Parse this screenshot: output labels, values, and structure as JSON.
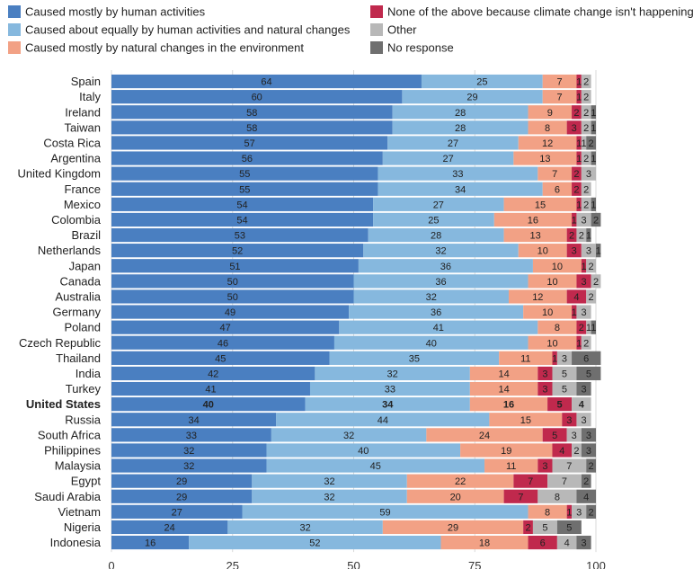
{
  "chart_data": {
    "type": "bar",
    "orientation": "horizontal",
    "stacked": true,
    "grid": true,
    "legend_position": "top",
    "xlim": [
      0,
      100
    ],
    "xticks": [
      0,
      25,
      50,
      75,
      100
    ],
    "highlight_category": "United States",
    "categories": [
      "Spain",
      "Italy",
      "Ireland",
      "Taiwan",
      "Costa Rica",
      "Argentina",
      "United Kingdom",
      "France",
      "Mexico",
      "Colombia",
      "Brazil",
      "Netherlands",
      "Japan",
      "Canada",
      "Australia",
      "Germany",
      "Poland",
      "Czech Republic",
      "Thailand",
      "India",
      "Turkey",
      "United States",
      "Russia",
      "South Africa",
      "Philippines",
      "Malaysia",
      "Egypt",
      "Saudi Arabia",
      "Vietnam",
      "Nigeria",
      "Indonesia"
    ],
    "series": [
      {
        "name": "Caused mostly by human activities",
        "color": "#4a7fc1",
        "values": [
          64,
          60,
          58,
          58,
          57,
          56,
          55,
          55,
          54,
          54,
          53,
          52,
          51,
          50,
          50,
          49,
          47,
          46,
          45,
          42,
          41,
          40,
          34,
          33,
          32,
          32,
          29,
          29,
          27,
          24,
          16
        ]
      },
      {
        "name": "Caused about equally by human activities and natural changes",
        "color": "#86b8de",
        "values": [
          25,
          29,
          28,
          28,
          27,
          27,
          33,
          34,
          27,
          25,
          28,
          32,
          36,
          36,
          32,
          36,
          41,
          40,
          35,
          32,
          33,
          34,
          44,
          32,
          40,
          45,
          32,
          32,
          59,
          32,
          52
        ]
      },
      {
        "name": "Caused mostly by natural changes in the environment",
        "color": "#f2a185",
        "values": [
          7,
          7,
          9,
          8,
          12,
          13,
          7,
          6,
          15,
          16,
          13,
          10,
          10,
          10,
          12,
          10,
          8,
          10,
          11,
          14,
          14,
          16,
          15,
          24,
          19,
          11,
          22,
          20,
          8,
          29,
          18
        ]
      },
      {
        "name": "None of the above because climate change isn't happening",
        "color": "#c0294d",
        "values": [
          1,
          1,
          2,
          3,
          1,
          1,
          2,
          2,
          1,
          1,
          2,
          3,
          1,
          3,
          4,
          1,
          2,
          1,
          1,
          3,
          3,
          5,
          3,
          5,
          4,
          3,
          7,
          7,
          1,
          2,
          6
        ]
      },
      {
        "name": "Other",
        "color": "#b8b8b8",
        "values": [
          2,
          2,
          2,
          2,
          1,
          2,
          3,
          2,
          2,
          3,
          2,
          3,
          2,
          2,
          2,
          3,
          1,
          2,
          3,
          5,
          5,
          4,
          3,
          3,
          2,
          7,
          7,
          8,
          3,
          5,
          4
        ]
      },
      {
        "name": "No response",
        "color": "#6f6f6f",
        "values": [
          0,
          0,
          1,
          1,
          2,
          1,
          0,
          0,
          1,
          2,
          1,
          1,
          0,
          0,
          0,
          0,
          1,
          0,
          6,
          5,
          3,
          0,
          0,
          3,
          3,
          2,
          2,
          4,
          2,
          5,
          3
        ]
      }
    ]
  }
}
